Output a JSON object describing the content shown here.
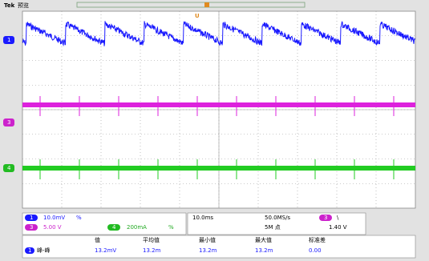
{
  "header": {
    "brand": "Tek",
    "mode": "预览",
    "trigger_marker": "U"
  },
  "channel_markers": [
    "1",
    "3",
    "4"
  ],
  "vertical": [
    {
      "channel": "1",
      "scale": "10.0mV",
      "flag": "%"
    },
    {
      "channel": "3",
      "scale": "5.00 V"
    },
    {
      "channel": "4",
      "scale": "200mA",
      "flag": "%"
    }
  ],
  "horizontal": {
    "time_per_div": "10.0ms",
    "sample_rate": "50.0MS/s",
    "record_length": "5M 点"
  },
  "trigger": {
    "channel": "3",
    "slope": "\\",
    "level": "1.40 V"
  },
  "measurements": {
    "headers": [
      "值",
      "平均值",
      "最小值",
      "最大值",
      "标准差"
    ],
    "rows": [
      {
        "channel": "1",
        "label": "峰-峰",
        "values": [
          "13.2mV",
          "13.2m",
          "13.2m",
          "13.2m",
          "0.00"
        ]
      }
    ]
  }
}
